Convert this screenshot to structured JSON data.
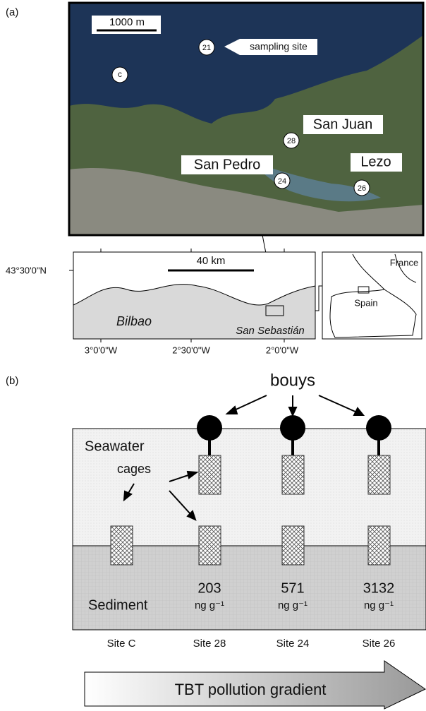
{
  "panel_a": {
    "label": "(a)",
    "photo": {
      "scale": "1000 m",
      "callout": "sampling site",
      "sites": {
        "s21": "21",
        "c": "c",
        "s28": "28",
        "s24": "24",
        "s26": "26"
      },
      "places": {
        "san_juan": "San Juan",
        "san_pedro": "San Pedro",
        "lezo": "Lezo"
      }
    },
    "region": {
      "lat": "43°30'0\"N",
      "scale": "40 km",
      "bilbao": "Bilbao",
      "san_sebastian": "San Sebastián",
      "lons": [
        "3°0'0\"W",
        "2°30'0\"W",
        "2°0'0\"W"
      ]
    },
    "inset": {
      "france": "France",
      "spain": "Spain"
    }
  },
  "panel_b": {
    "label": "(b)",
    "bouys": "bouys",
    "seawater": "Seawater",
    "cages": "cages",
    "sediment": "Sediment",
    "concentrations": [
      "203",
      "571",
      "3132"
    ],
    "unit": "ng g⁻¹",
    "sites": [
      "Site C",
      "Site 28",
      "Site 24",
      "Site 26"
    ],
    "gradient": "TBT pollution gradient"
  }
}
